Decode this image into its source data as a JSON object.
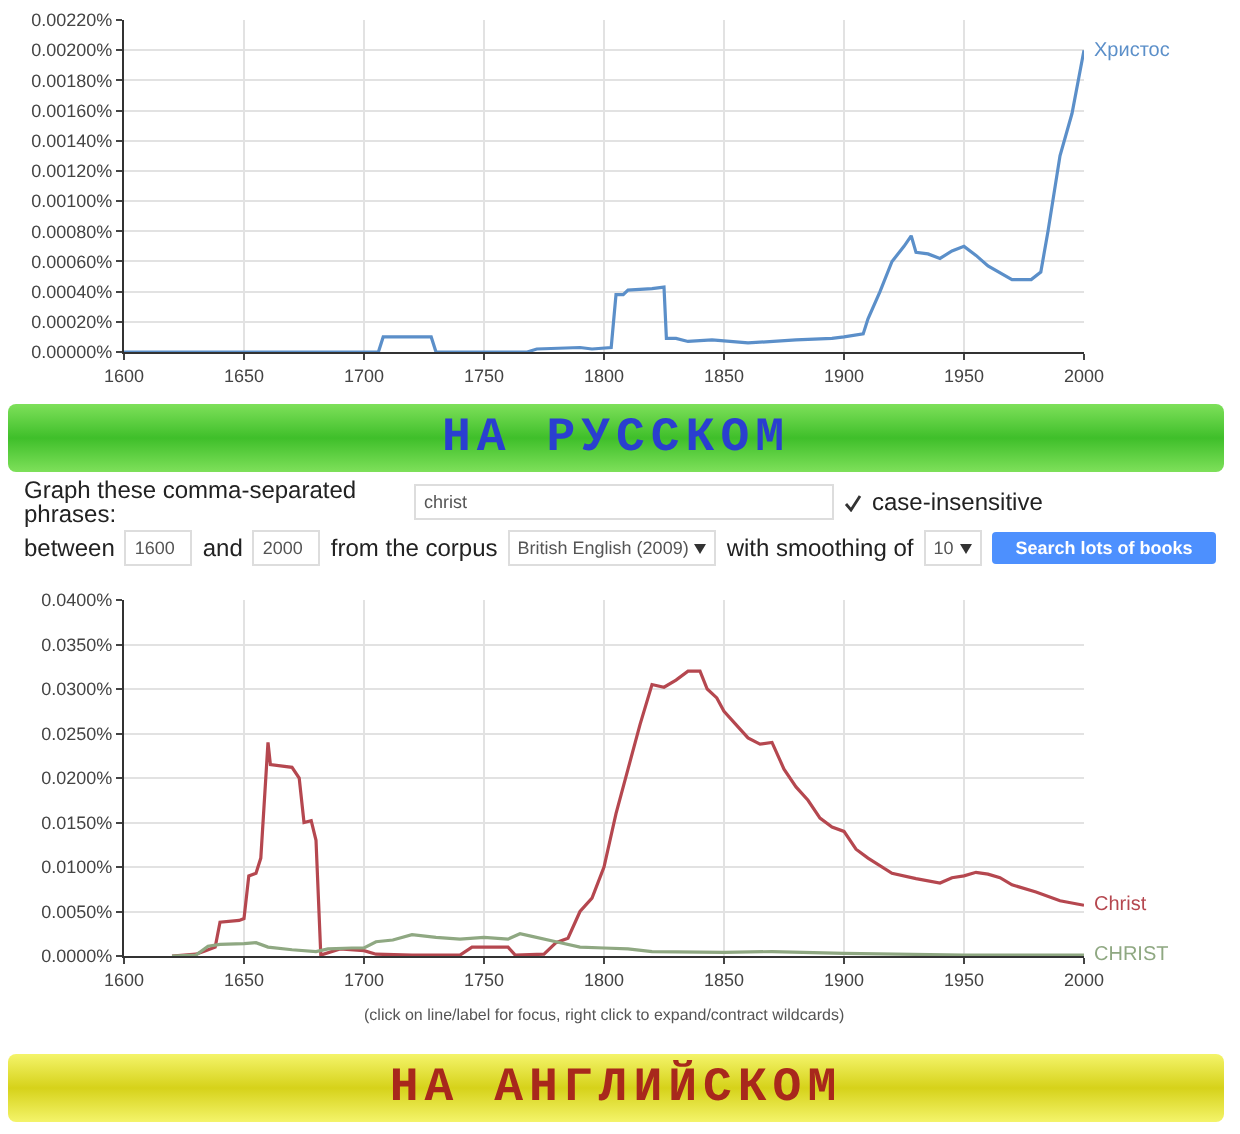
{
  "chart_data": [
    {
      "type": "line",
      "x": [
        1600,
        1706,
        1708,
        1728,
        1730,
        1768,
        1772,
        1790,
        1795,
        1803,
        1805,
        1808,
        1810,
        1820,
        1825,
        1826,
        1830,
        1835,
        1845,
        1860,
        1880,
        1895,
        1900,
        1908,
        1910,
        1915,
        1920,
        1925,
        1928,
        1930,
        1935,
        1940,
        1945,
        1950,
        1955,
        1960,
        1970,
        1978,
        1982,
        1985,
        1990,
        1995,
        2000
      ],
      "series": [
        {
          "name": "Христос",
          "color": "#5b8fc9",
          "values": [
            0,
            0,
            0.0001,
            0.0001,
            0,
            0,
            2e-05,
            3e-05,
            2e-05,
            3e-05,
            0.00038,
            0.00038,
            0.00041,
            0.00042,
            0.00043,
            9e-05,
            9e-05,
            7e-05,
            8e-05,
            6e-05,
            8e-05,
            9e-05,
            0.0001,
            0.00012,
            0.00022,
            0.0004,
            0.0006,
            0.0007,
            0.00077,
            0.00066,
            0.00065,
            0.00062,
            0.00067,
            0.0007,
            0.00064,
            0.00057,
            0.00048,
            0.00048,
            0.00053,
            0.0008,
            0.0013,
            0.00158,
            0.002
          ]
        }
      ],
      "xlim": [
        1600,
        2000
      ],
      "xticks": [
        1600,
        1650,
        1700,
        1750,
        1800,
        1850,
        1900,
        1950,
        2000
      ],
      "ylim": [
        0,
        0.0022
      ],
      "yticks": [
        {
          "value": 0,
          "label": "0.00000%"
        },
        {
          "value": 0.0002,
          "label": "0.00020%"
        },
        {
          "value": 0.0004,
          "label": "0.00040%"
        },
        {
          "value": 0.0006,
          "label": "0.00060%"
        },
        {
          "value": 0.0008,
          "label": "0.00080%"
        },
        {
          "value": 0.001,
          "label": "0.00100%"
        },
        {
          "value": 0.0012,
          "label": "0.00120%"
        },
        {
          "value": 0.0014,
          "label": "0.00140%"
        },
        {
          "value": 0.0016,
          "label": "0.00160%"
        },
        {
          "value": 0.0018,
          "label": "0.00180%"
        },
        {
          "value": 0.002,
          "label": "0.00200%"
        },
        {
          "value": 0.0022,
          "label": "0.00220%"
        }
      ],
      "grid": true,
      "legend": false,
      "annotations": [
        "НА РУССКОМ"
      ]
    },
    {
      "type": "other",
      "annotations": [
        "Graph these comma-separated phrases:",
        "christ",
        "case-insensitive",
        "between",
        "1600",
        "and",
        "2000",
        "from the corpus",
        "British English (2009)",
        "with smoothing of",
        "10",
        "Search lots of books"
      ]
    },
    {
      "type": "line",
      "series": [
        {
          "name": "Christ",
          "color": "#b5474f",
          "x": [
            1620,
            1630,
            1634,
            1638,
            1640,
            1648,
            1650,
            1652,
            1655,
            1657,
            1660,
            1661,
            1670,
            1673,
            1675,
            1678,
            1680,
            1682,
            1690,
            1700,
            1705,
            1720,
            1740,
            1745,
            1760,
            1763,
            1775,
            1780,
            1785,
            1790,
            1795,
            1800,
            1805,
            1810,
            1815,
            1820,
            1825,
            1830,
            1835,
            1840,
            1843,
            1847,
            1850,
            1855,
            1860,
            1865,
            1870,
            1875,
            1880,
            1885,
            1890,
            1895,
            1900,
            1905,
            1910,
            1920,
            1930,
            1940,
            1945,
            1950,
            1955,
            1960,
            1965,
            1970,
            1980,
            1990,
            2000
          ],
          "values": [
            0,
            0.0002,
            0.0006,
            0.001,
            0.0038,
            0.004,
            0.0042,
            0.009,
            0.0093,
            0.011,
            0.024,
            0.0215,
            0.0212,
            0.02,
            0.015,
            0.0152,
            0.013,
            0.0001,
            0.0008,
            0.0006,
            0.0002,
            0.0001,
            0.0001,
            0.001,
            0.001,
            0.0001,
            0.0002,
            0.0015,
            0.002,
            0.005,
            0.0065,
            0.01,
            0.016,
            0.021,
            0.026,
            0.0305,
            0.0302,
            0.031,
            0.032,
            0.032,
            0.03,
            0.029,
            0.0275,
            0.026,
            0.0245,
            0.0238,
            0.024,
            0.021,
            0.019,
            0.0175,
            0.0155,
            0.0145,
            0.014,
            0.012,
            0.011,
            0.0093,
            0.0087,
            0.0082,
            0.0088,
            0.009,
            0.0094,
            0.0092,
            0.0088,
            0.008,
            0.0072,
            0.0062,
            0.0057
          ]
        },
        {
          "name": "CHRIST",
          "color": "#8fa882",
          "x": [
            1620,
            1630,
            1635,
            1640,
            1650,
            1655,
            1660,
            1670,
            1680,
            1685,
            1695,
            1700,
            1705,
            1712,
            1720,
            1730,
            1740,
            1750,
            1760,
            1765,
            1770,
            1780,
            1790,
            1800,
            1810,
            1820,
            1850,
            1870,
            1900,
            1950,
            2000
          ],
          "values": [
            0,
            0.0001,
            0.0011,
            0.0013,
            0.0014,
            0.0015,
            0.001,
            0.0007,
            0.0005,
            0.0008,
            0.0009,
            0.0009,
            0.0016,
            0.0018,
            0.0024,
            0.0021,
            0.0019,
            0.0021,
            0.0019,
            0.0025,
            0.0022,
            0.0016,
            0.001,
            0.0009,
            0.0008,
            0.0005,
            0.0004,
            0.0005,
            0.0003,
            0.0001,
            0.0001
          ]
        }
      ],
      "xlim": [
        1600,
        2000
      ],
      "xticks": [
        1600,
        1650,
        1700,
        1750,
        1800,
        1850,
        1900,
        1950,
        2000
      ],
      "ylim": [
        0,
        0.04
      ],
      "yticks": [
        {
          "value": 0,
          "label": "0.0000%"
        },
        {
          "value": 0.005,
          "label": "0.0050%"
        },
        {
          "value": 0.01,
          "label": "0.0100%"
        },
        {
          "value": 0.015,
          "label": "0.0150%"
        },
        {
          "value": 0.02,
          "label": "0.0200%"
        },
        {
          "value": 0.025,
          "label": "0.0250%"
        },
        {
          "value": 0.03,
          "label": "0.0300%"
        },
        {
          "value": 0.035,
          "label": "0.0350%"
        },
        {
          "value": 0.04,
          "label": "0.0400%"
        }
      ],
      "grid": true,
      "legend": false,
      "annotations": [
        "(click on line/label for focus, right click to expand/contract wildcards)",
        "НА АНГЛИЙСКОМ"
      ]
    }
  ]
}
